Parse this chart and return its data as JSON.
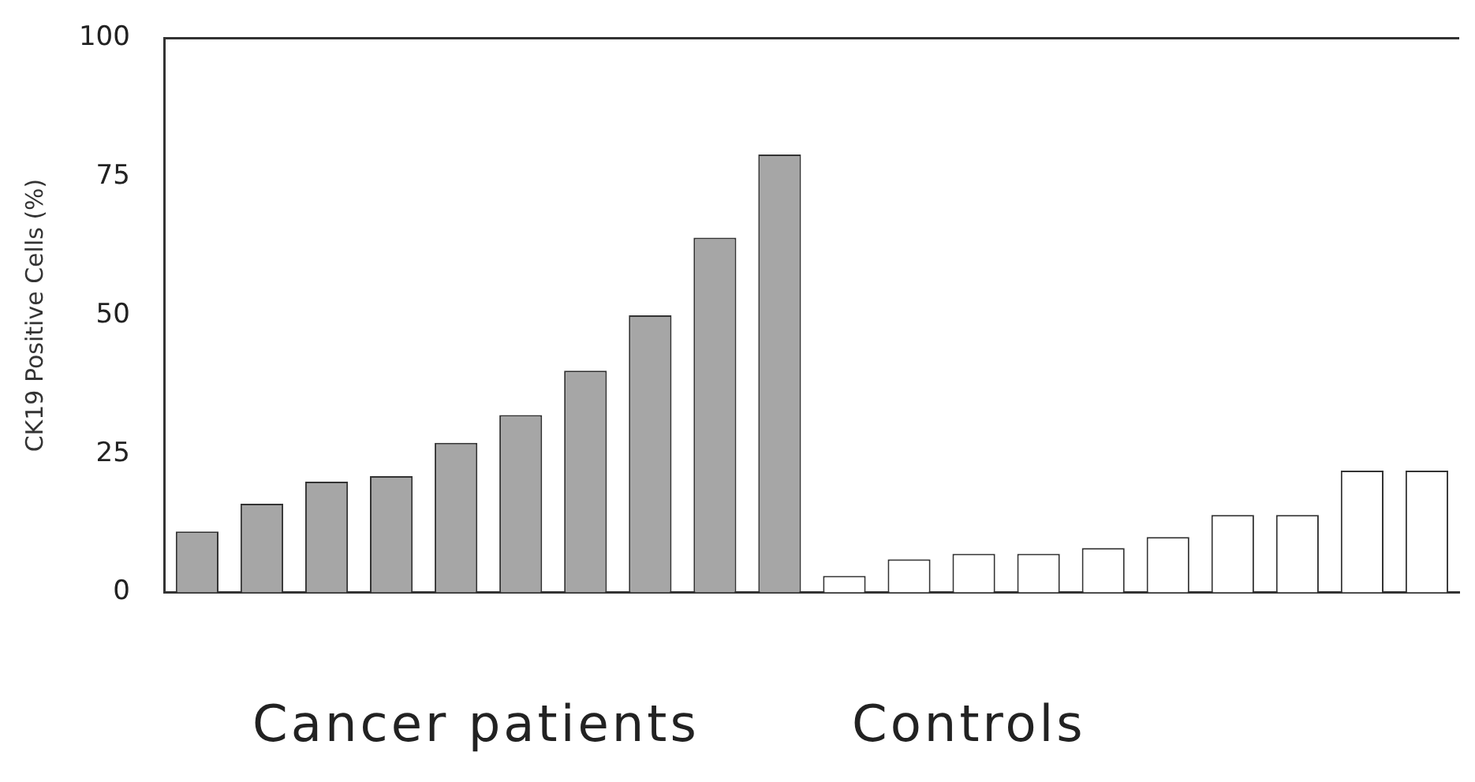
{
  "chart_data": {
    "type": "bar",
    "ylabel": "CK19 Positive Cells (%)",
    "categories": [
      null,
      null,
      null,
      null,
      null,
      null,
      null,
      null,
      null,
      null,
      null,
      null,
      null,
      null,
      null,
      null,
      null,
      null,
      null,
      null
    ],
    "values": [
      11,
      16,
      20,
      21,
      27,
      32,
      40,
      50,
      64,
      79,
      3,
      6,
      7,
      7,
      8,
      10,
      14,
      14,
      22,
      22
    ],
    "colors": [
      "#a6a6a6",
      "#a6a6a6",
      "#a6a6a6",
      "#a6a6a6",
      "#a6a6a6",
      "#a6a6a6",
      "#a6a6a6",
      "#a6a6a6",
      "#a6a6a6",
      "#a6a6a6",
      "#ffffff",
      "#ffffff",
      "#ffffff",
      "#ffffff",
      "#ffffff",
      "#ffffff",
      "#ffffff",
      "#ffffff",
      "#ffffff",
      "#ffffff"
    ],
    "ylim": [
      0,
      100
    ],
    "yticks": [
      0,
      25,
      50,
      75,
      100
    ],
    "grid": false,
    "legend": false,
    "annotations": [
      "Cancer patients",
      "Controls"
    ]
  }
}
